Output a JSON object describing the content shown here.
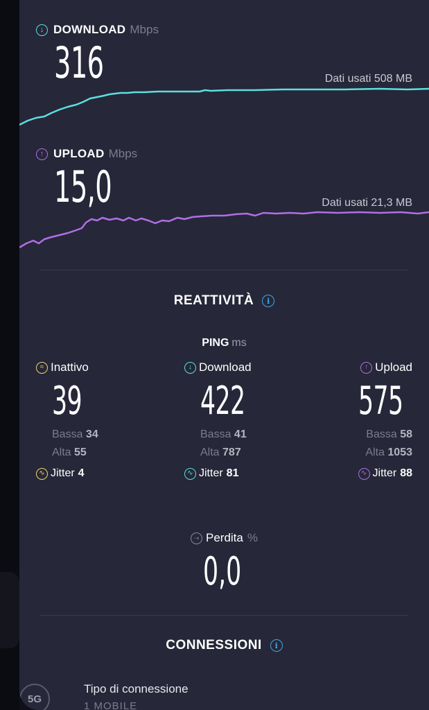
{
  "download": {
    "label": "DOWNLOAD",
    "unit": "Mbps",
    "value": "316",
    "data_used": "Dati usati 508 MB",
    "color": "#5ce0df"
  },
  "upload": {
    "label": "UPLOAD",
    "unit": "Mbps",
    "value": "15,0",
    "data_used": "Dati usati 21,3 MB",
    "color": "#b06fe6"
  },
  "responsiveness": {
    "title": "REATTIVITÀ",
    "ping_label": "PING",
    "ping_unit": "ms",
    "columns": [
      {
        "name": "Inattivo",
        "value": "39",
        "low_label": "Bassa",
        "low": "34",
        "high_label": "Alta",
        "high": "55",
        "jitter_label": "Jitter",
        "jitter": "4",
        "color": "#f2d470",
        "icon": "idle-icon"
      },
      {
        "name": "Download",
        "value": "422",
        "low_label": "Bassa",
        "low": "41",
        "high_label": "Alta",
        "high": "787",
        "jitter_label": "Jitter",
        "jitter": "81",
        "color": "#5ce0df",
        "icon": "download-icon"
      },
      {
        "name": "Upload",
        "value": "575",
        "low_label": "Bassa",
        "low": "58",
        "high_label": "Alta",
        "high": "1053",
        "jitter_label": "Jitter",
        "jitter": "88",
        "color": "#b06fe6",
        "icon": "upload-icon"
      }
    ],
    "loss": {
      "label": "Perdita",
      "unit": "%",
      "value": "0,0"
    }
  },
  "connections": {
    "title": "CONNESSIONI",
    "badge": "5G",
    "type_label": "Tipo di connessione",
    "type_value": "1 MOBILE"
  }
}
